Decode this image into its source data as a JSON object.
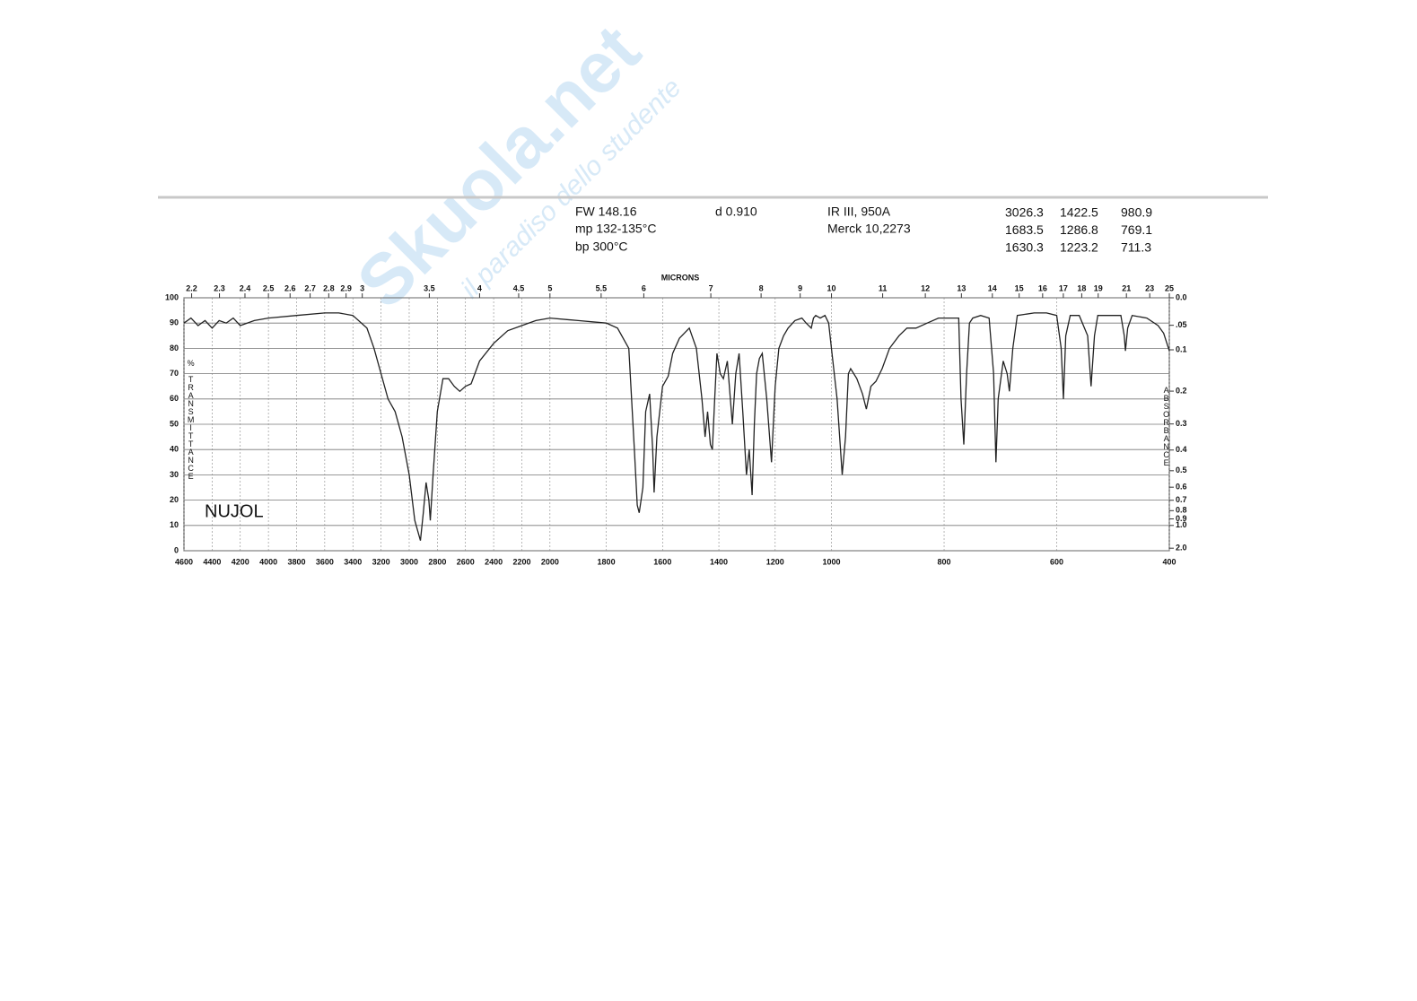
{
  "watermark": {
    "brand": "Skuola.net",
    "tagline": "il paradiso dello studente"
  },
  "header": {
    "fw": "FW 148.16",
    "mp": "mp 132-135°C",
    "bp": "bp 300°C",
    "density": "d 0.910",
    "ir": "IR III, 950A",
    "merck": "Merck 10,2273",
    "peaks": [
      [
        "3026.3",
        "1422.5",
        "980.9"
      ],
      [
        "1683.5",
        "1286.8",
        "769.1"
      ],
      [
        "1630.3",
        "1223.2",
        "711.3"
      ]
    ]
  },
  "chart_data": {
    "type": "line",
    "color": "#222",
    "annotation": "NUJOL",
    "x2_label": "MICRONS",
    "y_label": "% TRANSMITTANCE",
    "y2_label": "ABSORBANCE",
    "xlim": [
      4600,
      400
    ],
    "x_scale_changes": [
      2000,
      1000
    ],
    "xticks": [
      4600,
      4400,
      4200,
      4000,
      3800,
      3600,
      3400,
      3200,
      3000,
      2800,
      2600,
      2400,
      2200,
      2000,
      1800,
      1600,
      1400,
      1200,
      1000,
      800,
      600,
      400
    ],
    "x2ticks": [
      2.2,
      2.3,
      2.4,
      2.5,
      2.6,
      2.7,
      2.8,
      2.9,
      3,
      3.5,
      4,
      4.5,
      5,
      5.5,
      6,
      7,
      8,
      9,
      10,
      11,
      12,
      13,
      14,
      15,
      16,
      17,
      18,
      19,
      21,
      23,
      25
    ],
    "ylim": [
      0,
      100
    ],
    "yticks": [
      0,
      10,
      20,
      30,
      40,
      50,
      60,
      70,
      80,
      90,
      100
    ],
    "y2lim": [
      0,
      2
    ],
    "y2ticks": [
      {
        "value": 0,
        "label": "0.0"
      },
      {
        "value": 0.05,
        "label": ".05"
      },
      0.1,
      0.2,
      0.3,
      0.4,
      0.5,
      0.6,
      0.7,
      0.8,
      0.9,
      {
        "value": 1,
        "label": "1.0"
      },
      {
        "value": 2,
        "label": "2.0"
      }
    ],
    "grid": true,
    "x": [
      4600,
      4550,
      4500,
      4450,
      4400,
      4350,
      4300,
      4250,
      4200,
      4100,
      4000,
      3800,
      3600,
      3500,
      3400,
      3300,
      3250,
      3200,
      3150,
      3100,
      3050,
      3000,
      2960,
      2920,
      2900,
      2880,
      2860,
      2850,
      2830,
      2800,
      2760,
      2720,
      2680,
      2640,
      2600,
      2560,
      2500,
      2400,
      2300,
      2200,
      2100,
      2000,
      1900,
      1800,
      1760,
      1720,
      1700,
      1690,
      1683,
      1670,
      1660,
      1646,
      1635,
      1630,
      1620,
      1600,
      1580,
      1564,
      1540,
      1505,
      1480,
      1460,
      1449,
      1440,
      1430,
      1423,
      1415,
      1407,
      1395,
      1384,
      1370,
      1352,
      1340,
      1328,
      1315,
      1302,
      1292,
      1282,
      1274,
      1266,
      1256,
      1246,
      1230,
      1213,
      1200,
      1187,
      1170,
      1154,
      1130,
      1105,
      1090,
      1072,
      1064,
      1056,
      1040,
      1023,
      1010,
      1000,
      990,
      981,
      975,
      970,
      966,
      955,
      945,
      938,
      930,
      921,
      910,
      897,
      880,
      866,
      850,
      830,
      810,
      790,
      774,
      770,
      765,
      760,
      755,
      749,
      735,
      720,
      712,
      708,
      704,
      695,
      688,
      684,
      678,
      670,
      640,
      618,
      600,
      592,
      588,
      584,
      576,
      560,
      545,
      539,
      533,
      527,
      500,
      486,
      480,
      478,
      474,
      466,
      440,
      420,
      410,
      400
    ],
    "values": [
      90,
      92,
      89,
      91,
      88,
      91,
      90,
      92,
      89,
      91,
      92,
      93,
      94,
      94,
      93,
      88,
      80,
      70,
      60,
      55,
      45,
      30,
      12,
      4,
      15,
      27,
      20,
      12,
      30,
      55,
      68,
      68,
      65,
      63,
      65,
      66,
      75,
      82,
      87,
      89,
      91,
      92,
      91,
      90,
      88,
      80,
      40,
      18,
      15,
      25,
      55,
      62,
      40,
      23,
      45,
      65,
      69,
      78,
      84,
      88,
      80,
      60,
      45,
      55,
      42,
      40,
      60,
      78,
      70,
      68,
      75,
      50,
      70,
      78,
      55,
      30,
      40,
      22,
      50,
      70,
      76,
      78,
      60,
      35,
      65,
      80,
      85,
      88,
      91,
      92,
      90,
      88,
      92,
      93,
      92,
      93,
      90,
      80,
      60,
      30,
      45,
      70,
      72,
      68,
      62,
      56,
      65,
      67,
      72,
      80,
      85,
      88,
      88,
      90,
      92,
      92,
      92,
      60,
      42,
      70,
      90,
      92,
      93,
      92,
      70,
      35,
      60,
      75,
      70,
      63,
      80,
      93,
      94,
      94,
      93,
      80,
      60,
      85,
      93,
      93,
      85,
      65,
      85,
      93,
      93,
      93,
      85,
      79,
      88,
      93,
      92,
      89,
      86,
      79
    ]
  }
}
